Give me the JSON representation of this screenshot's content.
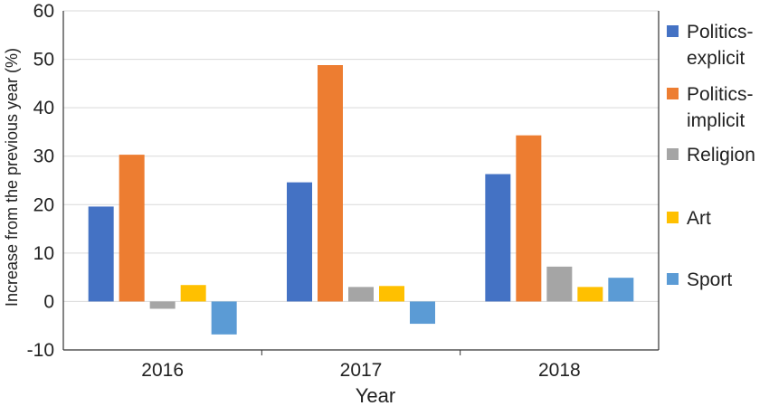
{
  "chart_data": {
    "type": "bar",
    "title": "",
    "xlabel": "Year",
    "ylabel": "Increase from the previous year (%)",
    "categories": [
      "2016",
      "2017",
      "2018"
    ],
    "ylim": [
      -10,
      60
    ],
    "yticks": [
      -10,
      0,
      10,
      20,
      30,
      40,
      50,
      60
    ],
    "grid": true,
    "legend_position": "right",
    "series": [
      {
        "name": "Politics-explicit",
        "legend_lines": [
          "Politics-",
          "explicit"
        ],
        "color": "#4472C4",
        "values": [
          19.6,
          24.6,
          26.3
        ]
      },
      {
        "name": "Politics-implicit",
        "legend_lines": [
          "Politics-",
          "implicit"
        ],
        "color": "#ED7D31",
        "values": [
          30.3,
          48.8,
          34.3
        ]
      },
      {
        "name": "Religion",
        "legend_lines": [
          "Religion"
        ],
        "color": "#A5A5A5",
        "values": [
          -1.5,
          3.0,
          7.2
        ]
      },
      {
        "name": "Art",
        "legend_lines": [
          "Art"
        ],
        "color": "#FFC000",
        "values": [
          3.4,
          3.2,
          3.0
        ]
      },
      {
        "name": "Sport",
        "legend_lines": [
          "Sport"
        ],
        "color": "#5B9BD5",
        "values": [
          -6.8,
          -4.6,
          4.9
        ]
      }
    ]
  }
}
